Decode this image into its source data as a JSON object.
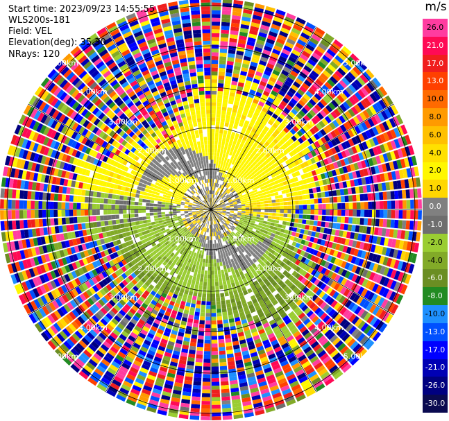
{
  "header": {
    "start_time": "Start time: 2023/09/23 14:55:55",
    "instrument": "WLS200s-181",
    "field": "Field: VEL",
    "elevation": "Elevation(deg): 35.30",
    "nrays": "NRays: 120"
  },
  "chart_data": {
    "type": "heatmap",
    "projection": "polar PPI",
    "field": "VEL",
    "unit": "m/s",
    "n_rays": 120,
    "range_ring_labels": [
      "1.00km",
      "2.00km",
      "3.00km",
      "4.00km",
      "5.00km"
    ],
    "colorbar": {
      "unit": "m/s",
      "levels": [
        "26.0",
        "21.0",
        "17.0",
        "13.0",
        "10.0",
        "8.0",
        "6.0",
        "4.0",
        "2.0",
        "1.0",
        "0.0",
        "-1.0",
        "-2.0",
        "-4.0",
        "-6.0",
        "-8.0",
        "-10.0",
        "-13.0",
        "-17.0",
        "-21.0",
        "-26.0",
        "-30.0"
      ],
      "colors": [
        "#ff3ca0",
        "#ff0a55",
        "#f01e1e",
        "#ff4000",
        "#ff6a00",
        "#ff9a00",
        "#ffc000",
        "#ffe000",
        "#fff700",
        "#ffd700",
        "#808080",
        "#6e6e6e",
        "#9acd32",
        "#82aa28",
        "#6b8e23",
        "#228b22",
        "#1e90ff",
        "#0050ff",
        "#0000ff",
        "#0000b4",
        "#000080",
        "#0a0a50"
      ]
    },
    "pattern": {
      "inner_core": "gray, near zero velocity",
      "north_half": "positive 1 to 2 m/s (yellow/gold)",
      "south_half": "negative -2 to -6 m/s (green)",
      "outer_ring": "noisy, full color range"
    }
  }
}
